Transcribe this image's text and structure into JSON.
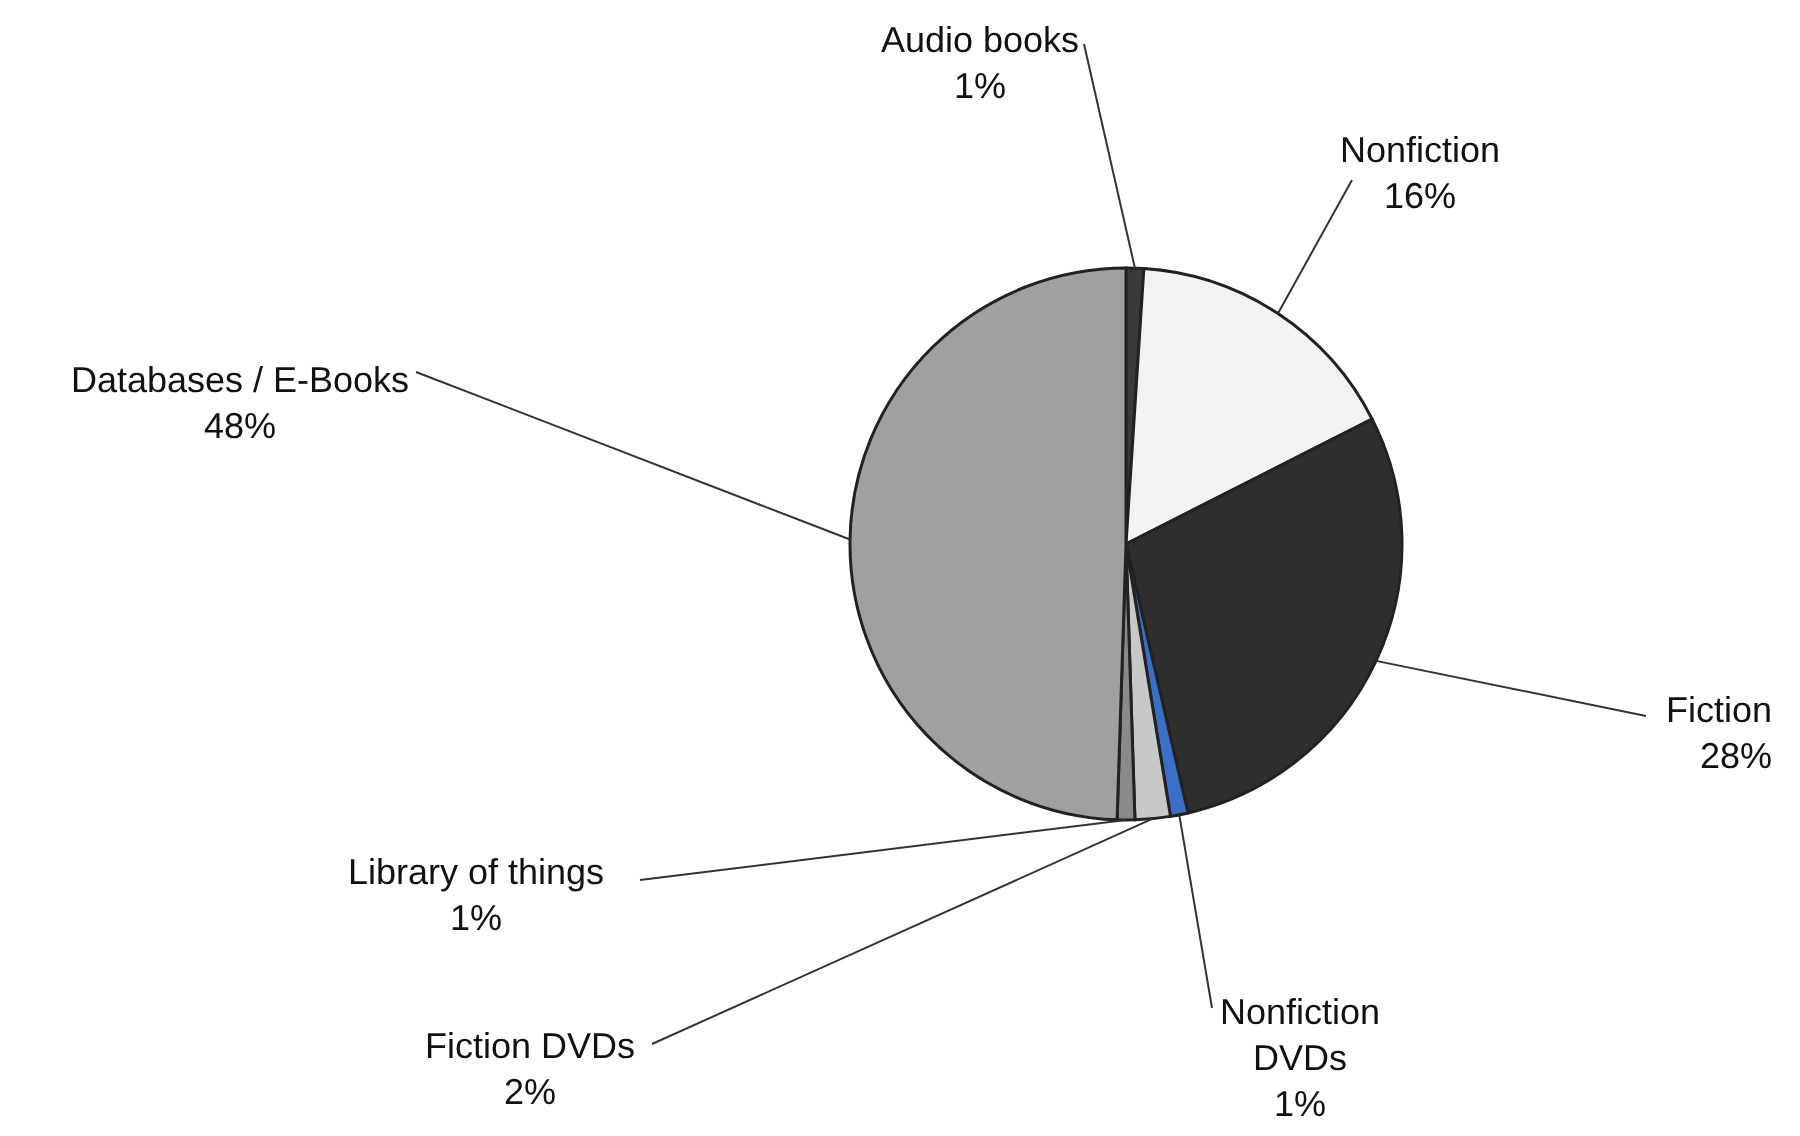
{
  "chart_data": {
    "type": "pie",
    "categories": [
      "Audio books",
      "Nonfiction",
      "Fiction",
      "Nonfiction DVDs",
      "Fiction DVDs",
      "Library of things",
      "Databases / E-Books"
    ],
    "values": [
      1,
      16,
      28,
      1,
      2,
      1,
      48
    ],
    "value_labels": [
      "1%",
      "16%",
      "28%",
      "1%",
      "2%",
      "1%",
      "48%"
    ],
    "colors": [
      "#3a3a3a",
      "#f2f2f2",
      "#2e2e2e",
      "#3b6fc6",
      "#c8c8c8",
      "#8a8a8a",
      "#a0a0a0"
    ],
    "legend": false
  }
}
